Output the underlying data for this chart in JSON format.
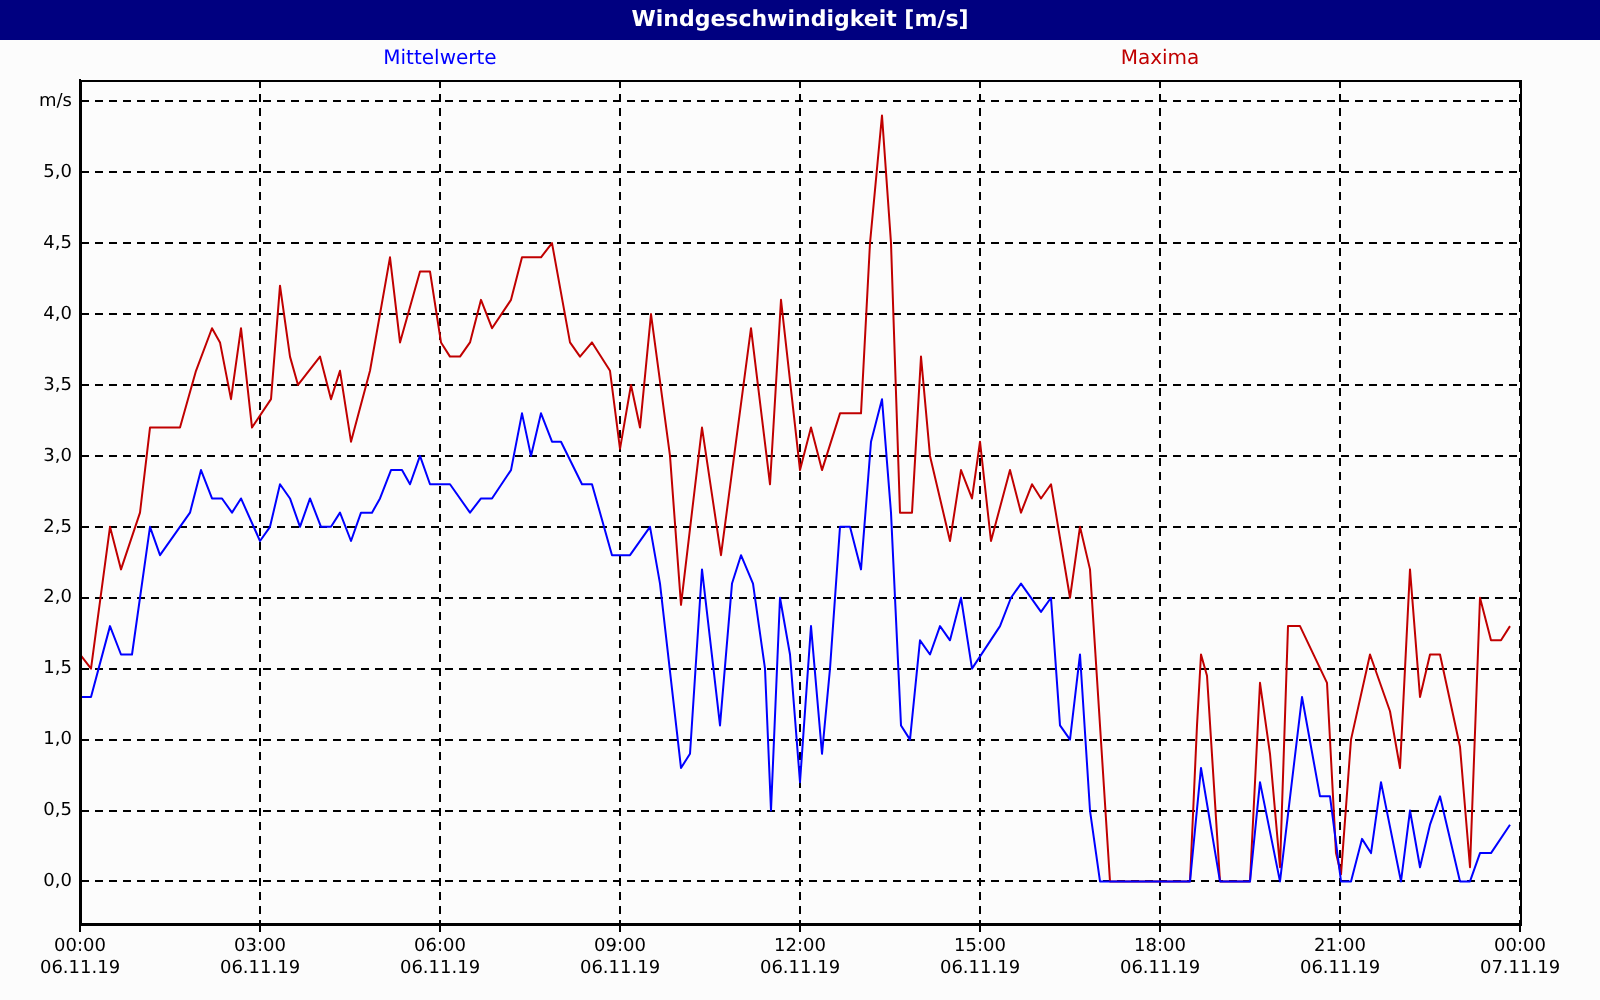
{
  "chart_data": {
    "type": "line",
    "title": "Windgeschwindigkeit [m/s]",
    "legend": "top",
    "grid": true,
    "marker": "none",
    "line_style": "solid",
    "xlim": [
      "--11-06T00:00",
      "--11-07T00:00"
    ],
    "xticks": [
      {
        "value": "--11-06T00:00",
        "label": "00:00 06.11.19"
      },
      {
        "value": "--11-06T03:00",
        "label": "03:00 06.11.19"
      },
      {
        "value": "--11-06T06:00",
        "label": "06:00 06.11.19"
      },
      {
        "value": "--11-06T09:00",
        "label": "09:00 06.11.19"
      },
      {
        "value": "--11-06T12:00",
        "label": "12:00 06.11.19"
      },
      {
        "value": "--11-06T15:00",
        "label": "15:00 06.11.19"
      },
      {
        "value": "--11-06T18:00",
        "label": "18:00 06.11.19"
      },
      {
        "value": "--11-06T21:00",
        "label": "21:00 06.11.19"
      },
      {
        "value": "--11-07T00:00",
        "label": "00:00 07.11.19"
      }
    ],
    "ylim": [
      -0.3,
      5.65
    ],
    "yticks": [
      {
        "value": 0,
        "label": "0,0"
      },
      {
        "value": 0.5,
        "label": "0,5"
      },
      {
        "value": 1,
        "label": "1,0"
      },
      {
        "value": 1.5,
        "label": "1,5"
      },
      {
        "value": 2,
        "label": "2,0"
      },
      {
        "value": 2.5,
        "label": "2,5"
      },
      {
        "value": 3,
        "label": "3,0"
      },
      {
        "value": 3.5,
        "label": "3,5"
      },
      {
        "value": 4,
        "label": "4,0"
      },
      {
        "value": 4.5,
        "label": "4,5"
      },
      {
        "value": 5,
        "label": "5,0"
      },
      {
        "value": 5.5,
        "label": "m/s"
      }
    ],
    "series": [
      {
        "name": "Mittelwerte",
        "color": "#0000ff",
        "x": [
          "--11-06T00:00",
          "--11-06T00:11",
          "--11-06T00:30",
          "--11-06T00:41",
          "--11-06T00:52",
          "--11-06T01:10",
          "--11-06T01:20",
          "--11-06T01:50",
          "--11-06T02:01",
          "--11-06T02:12",
          "--11-06T02:22",
          "--11-06T02:32",
          "--11-06T02:41",
          "--11-06T03:00",
          "--11-06T03:10",
          "--11-06T03:20",
          "--11-06T03:30",
          "--11-06T03:40",
          "--11-06T03:50",
          "--11-06T04:01",
          "--11-06T04:11",
          "--11-06T04:20",
          "--11-06T04:31",
          "--11-06T04:41",
          "--11-06T04:52",
          "--11-06T05:00",
          "--11-06T05:11",
          "--11-06T05:22",
          "--11-06T05:30",
          "--11-06T05:40",
          "--11-06T05:50",
          "--11-06T06:10",
          "--11-06T06:30",
          "--11-06T06:41",
          "--11-06T06:52",
          "--11-06T07:11",
          "--11-06T07:22",
          "--11-06T07:31",
          "--11-06T07:41",
          "--11-06T07:52",
          "--11-06T08:01",
          "--11-06T08:22",
          "--11-06T08:32",
          "--11-06T08:52",
          "--11-06T09:10",
          "--11-06T09:30",
          "--11-06T09:40",
          "--11-06T10:01",
          "--11-06T10:10",
          "--11-06T10:22",
          "--11-06T10:40",
          "--11-06T10:52",
          "--11-06T11:01",
          "--11-06T11:13",
          "--11-06T11:25",
          "--11-06T11:31",
          "--11-06T11:40",
          "--11-06T11:50",
          "--11-06T12:00",
          "--11-06T12:11",
          "--11-06T12:22",
          "--11-06T12:30",
          "--11-06T12:40",
          "--11-06T12:50",
          "--11-06T13:01",
          "--11-06T13:11",
          "--11-06T13:22",
          "--11-06T13:31",
          "--11-06T13:41",
          "--11-06T13:50",
          "--11-06T14:00",
          "--11-06T14:10",
          "--11-06T14:20",
          "--11-06T14:30",
          "--11-06T14:41",
          "--11-06T14:52",
          "--11-06T15:20",
          "--11-06T15:31",
          "--11-06T15:41",
          "--11-06T16:01",
          "--11-06T16:11",
          "--11-06T16:20",
          "--11-06T16:30",
          "--11-06T16:40",
          "--11-06T16:50",
          "--11-06T17:00",
          "--11-06T18:30",
          "--11-06T18:41",
          "--11-06T19:00",
          "--11-06T19:30",
          "--11-06T19:40",
          "--11-06T20:00",
          "--11-06T20:22",
          "--11-06T20:40",
          "--11-06T20:50",
          "--11-06T21:01",
          "--11-06T21:11",
          "--11-06T21:22",
          "--11-06T21:31",
          "--11-06T21:41",
          "--11-06T22:01",
          "--11-06T22:10",
          "--11-06T22:20",
          "--11-06T22:30",
          "--11-06T22:40",
          "--11-06T23:00",
          "--11-06T23:10",
          "--11-06T23:20",
          "--11-06T23:31",
          "--11-06T23:50"
        ],
        "values": [
          1.3,
          1.3,
          1.8,
          1.6,
          1.6,
          2.5,
          2.3,
          2.6,
          2.9,
          2.7,
          2.7,
          2.6,
          2.7,
          2.4,
          2.5,
          2.8,
          2.7,
          2.5,
          2.7,
          2.5,
          2.5,
          2.6,
          2.4,
          2.6,
          2.6,
          2.7,
          2.9,
          2.9,
          2.8,
          3.0,
          2.8,
          2.8,
          2.6,
          2.7,
          2.7,
          2.9,
          3.3,
          3.0,
          3.3,
          3.1,
          3.1,
          2.8,
          2.8,
          2.3,
          2.3,
          2.5,
          2.1,
          0.8,
          0.9,
          2.2,
          1.1,
          2.1,
          2.3,
          2.1,
          1.5,
          0.5,
          2.0,
          1.6,
          0.7,
          1.8,
          0.9,
          1.5,
          2.5,
          2.5,
          2.2,
          3.1,
          3.4,
          2.6,
          1.1,
          1.0,
          1.7,
          1.6,
          1.8,
          1.7,
          2.0,
          1.5,
          1.8,
          2.0,
          2.1,
          1.9,
          2.0,
          1.1,
          1.0,
          1.6,
          0.5,
          0,
          0,
          0.8,
          0,
          0,
          0.7,
          0,
          1.3,
          0.6,
          0.6,
          0,
          0,
          0.3,
          0.2,
          0.7,
          0,
          0.5,
          0.1,
          0.4,
          0.6,
          0,
          0,
          0.2,
          0.2,
          0.4
        ]
      },
      {
        "name": "Maxima",
        "color": "#c00000",
        "x": [
          "--11-06T00:00",
          "--11-06T00:11",
          "--11-06T00:30",
          "--11-06T00:41",
          "--11-06T01:00",
          "--11-06T01:10",
          "--11-06T01:40",
          "--11-06T01:56",
          "--11-06T02:12",
          "--11-06T02:20",
          "--11-06T02:31",
          "--11-06T02:41",
          "--11-06T02:52",
          "--11-06T03:11",
          "--11-06T03:20",
          "--11-06T03:30",
          "--11-06T03:38",
          "--11-06T04:00",
          "--11-06T04:11",
          "--11-06T04:20",
          "--11-06T04:31",
          "--11-06T04:50",
          "--11-06T05:10",
          "--11-06T05:20",
          "--11-06T05:40",
          "--11-06T05:50",
          "--11-06T06:01",
          "--11-06T06:10",
          "--11-06T06:20",
          "--11-06T06:30",
          "--11-06T06:41",
          "--11-06T06:52",
          "--11-06T07:11",
          "--11-06T07:22",
          "--11-06T07:41",
          "--11-06T07:52",
          "--11-06T08:10",
          "--11-06T08:20",
          "--11-06T08:32",
          "--11-06T08:50",
          "--11-06T09:00",
          "--11-06T09:11",
          "--11-06T09:20",
          "--11-06T09:31",
          "--11-06T09:50",
          "--11-06T10:01",
          "--11-06T10:22",
          "--11-06T10:41",
          "--11-06T11:11",
          "--11-06T11:30",
          "--11-06T11:41",
          "--11-06T12:00",
          "--11-06T12:11",
          "--11-06T12:22",
          "--11-06T12:40",
          "--11-06T12:50",
          "--11-06T13:01",
          "--11-06T13:10",
          "--11-06T13:22",
          "--11-06T13:31",
          "--11-06T13:40",
          "--11-06T13:52",
          "--11-06T14:01",
          "--11-06T14:10",
          "--11-06T14:30",
          "--11-06T14:41",
          "--11-06T14:52",
          "--11-06T15:00",
          "--11-06T15:11",
          "--11-06T15:30",
          "--11-06T15:41",
          "--11-06T15:52",
          "--11-06T16:01",
          "--11-06T16:11",
          "--11-06T16:30",
          "--11-06T16:40",
          "--11-06T16:50",
          "--11-06T17:10",
          "--11-06T18:30",
          "--11-06T18:37",
          "--11-06T18:41",
          "--11-06T18:47",
          "--11-06T19:00",
          "--11-06T19:30",
          "--11-06T19:40",
          "--11-06T19:50",
          "--11-06T20:00",
          "--11-06T20:08",
          "--11-06T20:20",
          "--11-06T20:47",
          "--11-06T20:56",
          "--11-06T21:01",
          "--11-06T21:11",
          "--11-06T21:30",
          "--11-06T21:50",
          "--11-06T22:00",
          "--11-06T22:10",
          "--11-06T22:20",
          "--11-06T22:30",
          "--11-06T22:40",
          "--11-06T23:00",
          "--11-06T23:10",
          "--11-06T23:20",
          "--11-06T23:31",
          "--11-06T23:41",
          "--11-06T23:50"
        ],
        "values": [
          1.6,
          1.5,
          2.5,
          2.2,
          2.6,
          3.2,
          3.2,
          3.6,
          3.9,
          3.8,
          3.4,
          3.9,
          3.2,
          3.4,
          4.2,
          3.7,
          3.5,
          3.7,
          3.4,
          3.6,
          3.1,
          3.6,
          4.4,
          3.8,
          4.3,
          4.3,
          3.8,
          3.7,
          3.7,
          3.8,
          4.1,
          3.9,
          4.1,
          4.4,
          4.4,
          4.5,
          3.8,
          3.7,
          3.8,
          3.6,
          3.05,
          3.5,
          3.2,
          4.0,
          3.0,
          1.95,
          3.2,
          2.3,
          3.9,
          2.8,
          4.1,
          2.9,
          3.2,
          2.9,
          3.3,
          3.3,
          3.3,
          4.5,
          5.4,
          4.5,
          2.6,
          2.6,
          3.7,
          3.0,
          2.4,
          2.9,
          2.7,
          3.1,
          2.4,
          2.9,
          2.6,
          2.8,
          2.7,
          2.8,
          2.0,
          2.5,
          2.2,
          0,
          0,
          1.1,
          1.6,
          1.45,
          0,
          0,
          1.4,
          0.9,
          0.1,
          1.8,
          1.8,
          1.4,
          0.2,
          0.05,
          1.0,
          1.6,
          1.2,
          0.8,
          2.2,
          1.3,
          1.6,
          1.6,
          0.95,
          0.1,
          2.0,
          1.7,
          1.7,
          1.8
        ]
      }
    ]
  }
}
